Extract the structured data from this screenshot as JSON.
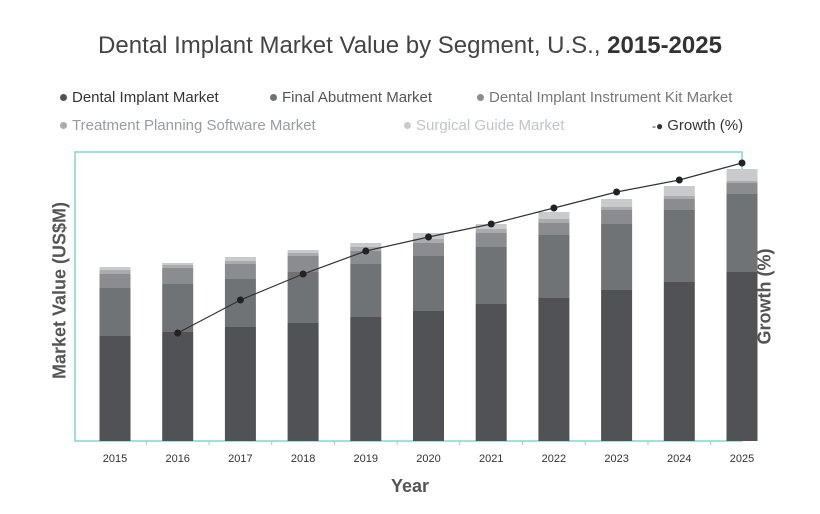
{
  "chart_data": {
    "type": "bar",
    "stacked": true,
    "title": "Dental Implant Market Value by Segment, U.S., ",
    "title_bold": "2015-2025",
    "xlabel": "Year",
    "ylabel": "Market Value (US$M)",
    "y2label": "Growth (%)",
    "categories": [
      "2015",
      "2016",
      "2017",
      "2018",
      "2019",
      "2020",
      "2021",
      "2022",
      "2023",
      "2024",
      "2025"
    ],
    "series": [
      {
        "name": "Dental Implant Market",
        "color": "#505256",
        "values": [
          105,
          109,
          114,
          118,
          124,
          130,
          137,
          143,
          151,
          159,
          169
        ]
      },
      {
        "name": "Final Abutment Market",
        "color": "#707376",
        "values": [
          48,
          48,
          48,
          51,
          53,
          55,
          57,
          63,
          66,
          72,
          78
        ]
      },
      {
        "name": "Dental Implant Instrument Kit Market",
        "color": "#8a8c8f",
        "values": [
          14,
          16,
          15,
          16,
          13,
          13,
          14,
          12,
          14,
          11,
          11
        ]
      },
      {
        "name": "Treatment Planning Software Market",
        "color": "#a9abad",
        "values": [
          4,
          3,
          3,
          3,
          4,
          4,
          4,
          4,
          3,
          3,
          2
        ]
      },
      {
        "name": "Surgical Guide Market",
        "color": "#c8cacc",
        "values": [
          3,
          2,
          4,
          3,
          4,
          6,
          5,
          7,
          8,
          10,
          12
        ]
      }
    ],
    "growth": {
      "name": "Growth (%)",
      "color": "#333333",
      "values": [
        null,
        108,
        141,
        167,
        190,
        204,
        217,
        233,
        249,
        261,
        278
      ]
    },
    "legend_placement": "top",
    "grid": false,
    "frame_color": "#7fd8d0"
  }
}
